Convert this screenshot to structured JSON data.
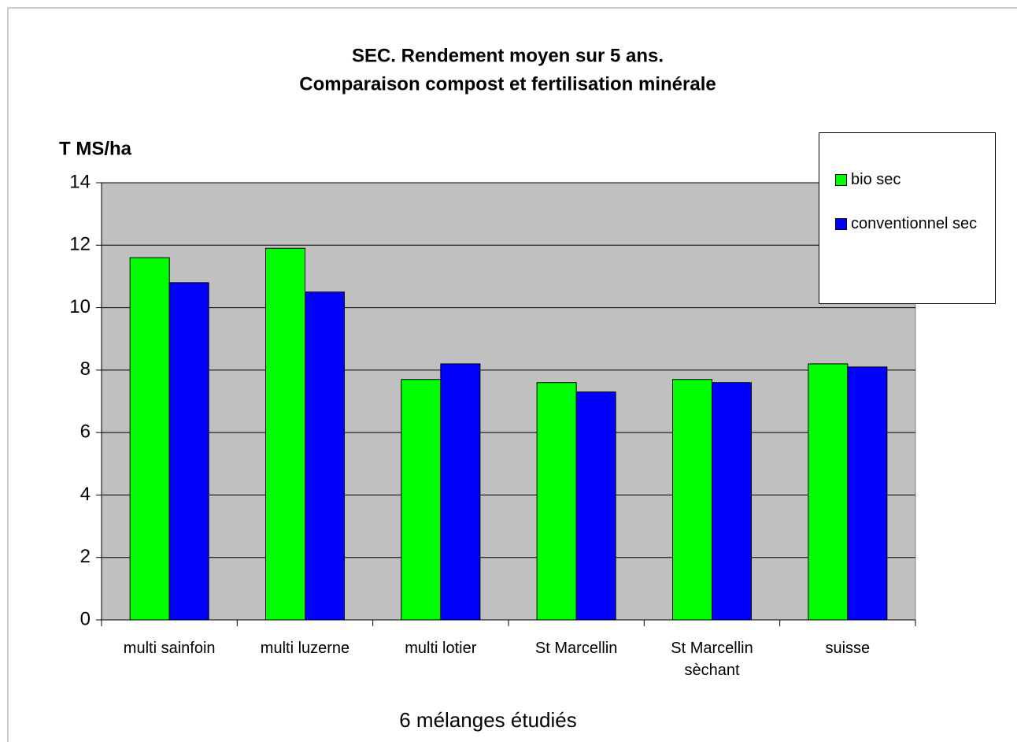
{
  "chart_data": {
    "type": "bar",
    "title": "SEC. Rendement moyen sur 5 ans.",
    "subtitle": "Comparaison compost et fertilisation minérale",
    "y_label": "T MS/ha",
    "x_label": "6 mélanges étudiés",
    "categories": [
      "multi sainfoin",
      "multi luzerne",
      "multi lotier",
      "St Marcellin",
      "St Marcellin sèchant",
      "suisse"
    ],
    "series": [
      {
        "name": "bio sec",
        "color": "#00ff00",
        "values": [
          11.6,
          11.9,
          7.7,
          7.6,
          7.7,
          8.2
        ]
      },
      {
        "name": "conventionnel sec",
        "color": "#0000ff",
        "values": [
          10.8,
          10.5,
          8.2,
          7.3,
          7.6,
          8.1
        ]
      }
    ],
    "ylim": [
      0,
      14
    ],
    "yticks": [
      0,
      2,
      4,
      6,
      8,
      10,
      12,
      14
    ],
    "grid": true,
    "legend": "top-right",
    "plot_background": "#c0c0c0"
  }
}
